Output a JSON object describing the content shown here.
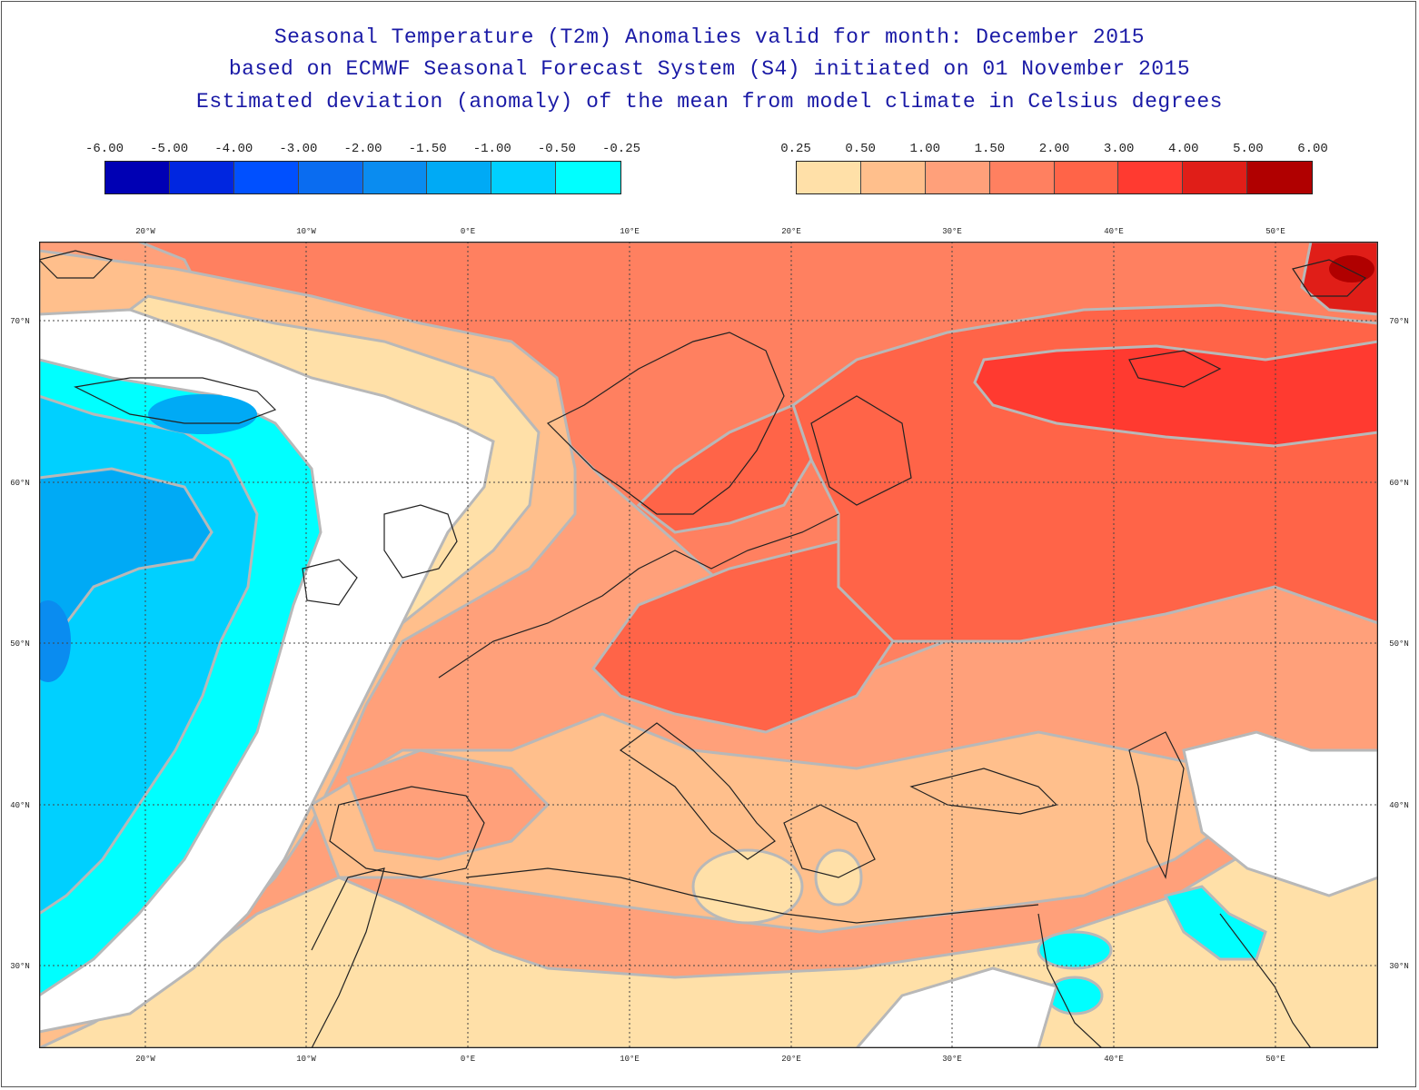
{
  "titles": {
    "line1": "Seasonal Temperature (T2m) Anomalies valid for month: December 2015",
    "line2": "based on ECMWF Seasonal Forecast System (S4) initiated on 01 November 2015",
    "line3": "Estimated deviation (anomaly) of the mean from model climate in Celsius degrees"
  },
  "legend": {
    "negative": {
      "labels": [
        "-6.00",
        "-5.00",
        "-4.00",
        "-3.00",
        "-2.00",
        "-1.50",
        "-1.00",
        "-0.50",
        "-0.25"
      ],
      "colors": [
        "#0000b4",
        "#0026e0",
        "#0050ff",
        "#0a6cf0",
        "#0a8cf0",
        "#00aaf5",
        "#00d0ff",
        "#00ffff"
      ]
    },
    "positive": {
      "labels": [
        "0.25",
        "0.50",
        "1.00",
        "1.50",
        "2.00",
        "3.00",
        "4.00",
        "5.00",
        "6.00"
      ],
      "colors": [
        "#ffe0a8",
        "#ffbf8c",
        "#ffa07a",
        "#ff8060",
        "#ff6448",
        "#ff3a30",
        "#e01e18",
        "#b00000"
      ]
    }
  },
  "axes": {
    "lon_labels": [
      "20°W",
      "10°W",
      "0°E",
      "10°E",
      "20°E",
      "30°E",
      "40°E",
      "50°E"
    ],
    "lat_labels": [
      "70°N",
      "60°N",
      "50°N",
      "40°N",
      "30°N"
    ]
  },
  "colors": {
    "neutral": "#ffffff",
    "contour": "#b8b8b8",
    "coast": "#222222"
  }
}
